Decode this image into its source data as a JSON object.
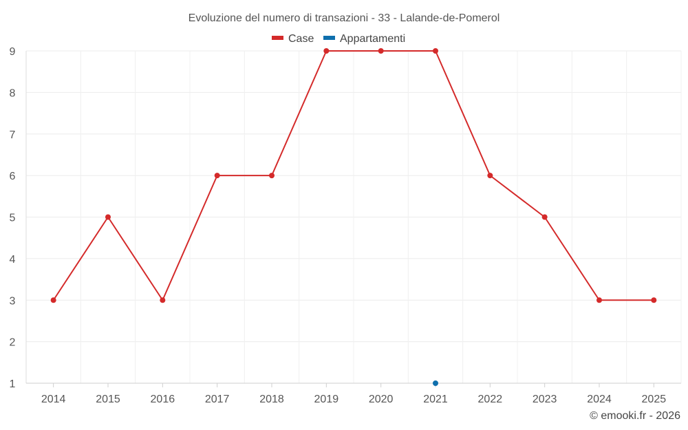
{
  "chart_data": {
    "type": "line",
    "title": "Evoluzione del numero di transazioni - 33 - Lalande-de-Pomerol",
    "categories": [
      "2014",
      "2015",
      "2016",
      "2017",
      "2018",
      "2019",
      "2020",
      "2021",
      "2022",
      "2023",
      "2024",
      "2025"
    ],
    "ylim": [
      1,
      9
    ],
    "yticks": [
      "1",
      "2",
      "3",
      "4",
      "5",
      "6",
      "7",
      "8",
      "9"
    ],
    "grid": true,
    "legend_position": "top-center",
    "series": [
      {
        "name": "Case",
        "color": "#d42a2a",
        "values": [
          3,
          5,
          3,
          6,
          6,
          9,
          9,
          9,
          6,
          5,
          3,
          3
        ]
      },
      {
        "name": "Appartamenti",
        "color": "#0f6fad",
        "values": [
          null,
          null,
          null,
          null,
          null,
          null,
          null,
          1,
          null,
          null,
          null,
          null
        ]
      }
    ],
    "credit": "© emooki.fr - 2026"
  }
}
